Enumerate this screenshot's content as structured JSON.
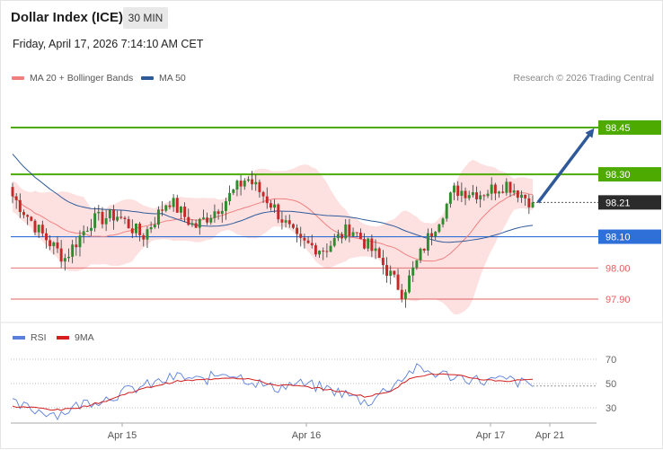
{
  "header": {
    "title": "Dollar Index (ICE)",
    "interval": "30 MIN"
  },
  "timestamp": "Friday, April 17, 2026 7:14:10 AM CET",
  "legend": {
    "ma20": {
      "label": "MA 20 + Bollinger Bands",
      "color": "#f08080"
    },
    "ma50": {
      "label": "MA 50",
      "color": "#2f5a9a"
    }
  },
  "copyright": "Research © 2026 Trading Central",
  "rsi_legend": {
    "rsi": {
      "label": "RSI",
      "color": "#5b7fdc"
    },
    "ma9": {
      "label": "9MA",
      "color": "#d21f1f"
    }
  },
  "chart_data": [
    {
      "type": "candlestick",
      "y_range": [
        97.85,
        98.56
      ],
      "current_price": {
        "value": 98.21,
        "label": "98.21"
      },
      "levels": [
        {
          "value": 98.45,
          "label": "98.45",
          "kind": "resistance",
          "color": "#4caa00"
        },
        {
          "value": 98.3,
          "label": "98.30",
          "kind": "resistance",
          "color": "#4caa00"
        },
        {
          "value": 98.1,
          "label": "98.10",
          "kind": "pivot",
          "color": "#2f6fd8"
        },
        {
          "value": 98.0,
          "label": "98.00",
          "kind": "support",
          "color": "#e06060"
        },
        {
          "value": 97.9,
          "label": "97.90",
          "kind": "support",
          "color": "#e06060"
        }
      ],
      "projection": {
        "from": 98.21,
        "to": 98.45
      },
      "x_ticks": [
        "Apr 15",
        "Apr 16",
        "Apr 17",
        "Apr 21"
      ],
      "ohlc_keypoints": [
        [
          98.27,
          98.34,
          98.22,
          98.23
        ],
        [
          98.18,
          98.22,
          98.08,
          98.12
        ],
        [
          98.08,
          98.12,
          98.0,
          98.03
        ],
        [
          98.12,
          98.18,
          98.08,
          98.15
        ],
        [
          98.16,
          98.2,
          98.12,
          98.17
        ],
        [
          98.14,
          98.17,
          98.09,
          98.1
        ],
        [
          98.2,
          98.26,
          98.16,
          98.22
        ],
        [
          98.18,
          98.21,
          98.12,
          98.13
        ],
        [
          98.17,
          98.24,
          98.12,
          98.2
        ],
        [
          98.27,
          98.31,
          98.23,
          98.29
        ],
        [
          98.24,
          98.27,
          98.18,
          98.2
        ],
        [
          98.14,
          98.17,
          98.05,
          98.08
        ],
        [
          98.09,
          98.12,
          98.04,
          98.06
        ],
        [
          98.12,
          98.16,
          98.08,
          98.13
        ],
        [
          98.07,
          98.1,
          98.02,
          98.04
        ],
        [
          97.98,
          98.02,
          97.85,
          97.92
        ],
        [
          98.05,
          98.12,
          98.02,
          98.1
        ],
        [
          98.2,
          98.27,
          98.15,
          98.25
        ],
        [
          98.28,
          98.3,
          98.22,
          98.24
        ],
        [
          98.26,
          98.3,
          98.22,
          98.27
        ],
        [
          98.25,
          98.28,
          98.19,
          98.21
        ]
      ]
    },
    {
      "type": "line",
      "name": "RSI",
      "y_ticks": [
        70,
        50,
        30
      ],
      "y_range": [
        18,
        82
      ],
      "rsi_keypoints": [
        33,
        28,
        25,
        34,
        38,
        45,
        50,
        56,
        52,
        60,
        53,
        46,
        50,
        47,
        42,
        34,
        48,
        62,
        58,
        55,
        52,
        53,
        48
      ],
      "ma9_keypoints": [
        31,
        30,
        28,
        31,
        36,
        43,
        48,
        52,
        53,
        55,
        54,
        49,
        48,
        46,
        43,
        39,
        44,
        56,
        58,
        56,
        53,
        52,
        54
      ]
    }
  ]
}
